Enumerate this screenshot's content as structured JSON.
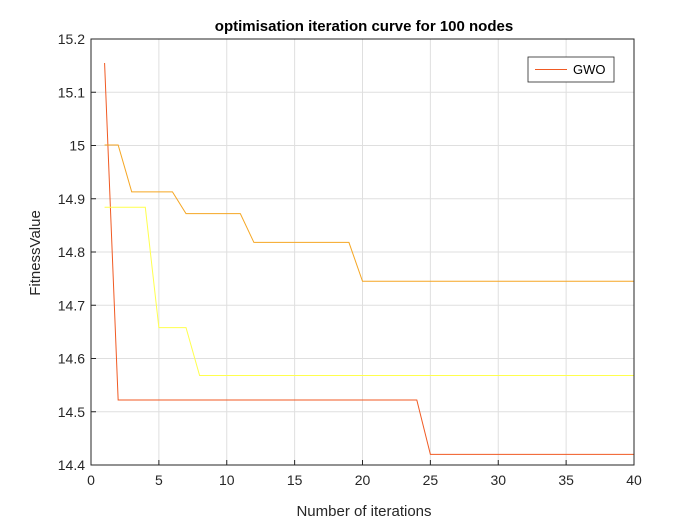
{
  "chart_data": {
    "type": "line",
    "title": "optimisation iteration curve for 100 nodes",
    "xlabel": "Number of iterations",
    "ylabel": "FitnessValue",
    "xlim": [
      0,
      40
    ],
    "ylim": [
      14.4,
      15.2
    ],
    "xticks": [
      "0",
      "5",
      "10",
      "15",
      "20",
      "25",
      "30",
      "35",
      "40"
    ],
    "yticks": [
      "14.4",
      "14.5",
      "14.6",
      "14.7",
      "14.8",
      "14.9",
      "15",
      "15.1",
      "15.2"
    ],
    "grid": true,
    "legend_position": "top-right",
    "legend_entries": [
      "GWO"
    ],
    "series": [
      {
        "name": "GWO",
        "color": "#f05a23",
        "x": [
          1,
          2,
          24,
          25,
          40
        ],
        "y": [
          15.155,
          14.522,
          14.522,
          14.42,
          14.42
        ]
      },
      {
        "color": "#ffff4d",
        "x": [
          1,
          4,
          5,
          7,
          8,
          40
        ],
        "y": [
          14.884,
          14.884,
          14.658,
          14.658,
          14.568,
          14.568
        ]
      },
      {
        "color": "#f5a623",
        "x": [
          1,
          2,
          3,
          6,
          7,
          11,
          12,
          19,
          20,
          40
        ],
        "y": [
          15.001,
          15.001,
          14.913,
          14.913,
          14.872,
          14.872,
          14.818,
          14.818,
          14.745,
          14.745
        ]
      }
    ]
  }
}
